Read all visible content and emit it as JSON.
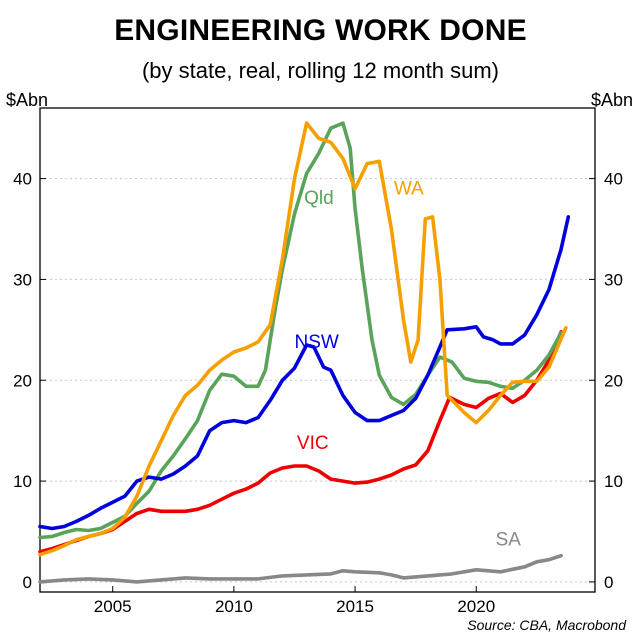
{
  "chart_data": {
    "type": "line",
    "title": "ENGINEERING WORK DONE",
    "subtitle": "(by state, real, rolling 12 month sum)",
    "ylabel_left": "$Abn",
    "ylabel_right": "$Abn",
    "source": "Source: CBA, Macrobond",
    "xlim": [
      2002.0,
      2024.9
    ],
    "ylim": [
      -1,
      47
    ],
    "x_ticks": [
      2005,
      2010,
      2015,
      2020
    ],
    "y_ticks": [
      0,
      10,
      20,
      30,
      40
    ],
    "grid": "horizontal dotted",
    "series": [
      {
        "name": "NSW",
        "color": "#0000dd",
        "points": [
          [
            2002.0,
            5.5
          ],
          [
            2002.5,
            5.3
          ],
          [
            2003.0,
            5.5
          ],
          [
            2003.5,
            6.0
          ],
          [
            2004.0,
            6.6
          ],
          [
            2004.5,
            7.3
          ],
          [
            2005.0,
            7.9
          ],
          [
            2005.5,
            8.5
          ],
          [
            2006.0,
            10.0
          ],
          [
            2006.5,
            10.4
          ],
          [
            2007.0,
            10.2
          ],
          [
            2007.5,
            10.7
          ],
          [
            2008.0,
            11.5
          ],
          [
            2008.5,
            12.5
          ],
          [
            2009.0,
            15.0
          ],
          [
            2009.5,
            15.8
          ],
          [
            2010.0,
            16.0
          ],
          [
            2010.5,
            15.8
          ],
          [
            2011.0,
            16.3
          ],
          [
            2011.5,
            18.0
          ],
          [
            2012.0,
            20.0
          ],
          [
            2012.5,
            21.2
          ],
          [
            2013.0,
            23.5
          ],
          [
            2013.3,
            23.3
          ],
          [
            2013.7,
            21.3
          ],
          [
            2014.0,
            21.0
          ],
          [
            2014.5,
            18.5
          ],
          [
            2015.0,
            16.8
          ],
          [
            2015.5,
            16.0
          ],
          [
            2016.0,
            16.0
          ],
          [
            2016.5,
            16.5
          ],
          [
            2017.0,
            17.0
          ],
          [
            2017.5,
            18.2
          ],
          [
            2018.0,
            20.5
          ],
          [
            2018.5,
            23.3
          ],
          [
            2018.8,
            25.0
          ],
          [
            2019.5,
            25.1
          ],
          [
            2020.0,
            25.3
          ],
          [
            2020.3,
            24.3
          ],
          [
            2020.7,
            24.0
          ],
          [
            2021.0,
            23.6
          ],
          [
            2021.5,
            23.6
          ],
          [
            2022.0,
            24.5
          ],
          [
            2022.5,
            26.5
          ],
          [
            2023.0,
            29.0
          ],
          [
            2023.5,
            33.0
          ],
          [
            2023.8,
            36.2
          ]
        ]
      },
      {
        "name": "Qld",
        "color": "#5aa35a",
        "points": [
          [
            2002.0,
            4.4
          ],
          [
            2002.5,
            4.5
          ],
          [
            2003.0,
            4.9
          ],
          [
            2003.5,
            5.2
          ],
          [
            2004.0,
            5.1
          ],
          [
            2004.5,
            5.3
          ],
          [
            2005.0,
            5.9
          ],
          [
            2005.5,
            6.5
          ],
          [
            2006.0,
            7.8
          ],
          [
            2006.5,
            9.0
          ],
          [
            2007.0,
            11.0
          ],
          [
            2007.5,
            12.5
          ],
          [
            2008.0,
            14.2
          ],
          [
            2008.5,
            16.0
          ],
          [
            2009.0,
            19.0
          ],
          [
            2009.5,
            20.6
          ],
          [
            2010.0,
            20.4
          ],
          [
            2010.5,
            19.4
          ],
          [
            2011.0,
            19.4
          ],
          [
            2011.3,
            21.0
          ],
          [
            2011.7,
            27.0
          ],
          [
            2012.0,
            31.0
          ],
          [
            2012.5,
            36.5
          ],
          [
            2013.0,
            40.5
          ],
          [
            2013.5,
            42.5
          ],
          [
            2014.0,
            45.0
          ],
          [
            2014.5,
            45.5
          ],
          [
            2014.8,
            43.0
          ],
          [
            2015.0,
            37.0
          ],
          [
            2015.3,
            31.0
          ],
          [
            2015.7,
            24.0
          ],
          [
            2016.0,
            20.5
          ],
          [
            2016.5,
            18.3
          ],
          [
            2017.0,
            17.6
          ],
          [
            2017.5,
            18.6
          ],
          [
            2018.0,
            20.5
          ],
          [
            2018.5,
            22.3
          ],
          [
            2019.0,
            21.8
          ],
          [
            2019.5,
            20.2
          ],
          [
            2020.0,
            19.9
          ],
          [
            2020.5,
            19.8
          ],
          [
            2021.0,
            19.4
          ],
          [
            2021.5,
            19.2
          ],
          [
            2022.0,
            20.0
          ],
          [
            2022.5,
            21.0
          ],
          [
            2023.0,
            22.5
          ],
          [
            2023.5,
            24.7
          ]
        ]
      },
      {
        "name": "WA",
        "color": "#f5a000",
        "points": [
          [
            2002.0,
            2.7
          ],
          [
            2002.5,
            3.1
          ],
          [
            2003.0,
            3.6
          ],
          [
            2003.5,
            4.2
          ],
          [
            2004.0,
            4.5
          ],
          [
            2004.5,
            4.8
          ],
          [
            2005.0,
            5.3
          ],
          [
            2005.5,
            6.4
          ],
          [
            2006.0,
            8.5
          ],
          [
            2006.5,
            11.5
          ],
          [
            2007.0,
            14.0
          ],
          [
            2007.5,
            16.5
          ],
          [
            2008.0,
            18.5
          ],
          [
            2008.5,
            19.5
          ],
          [
            2009.0,
            21.0
          ],
          [
            2009.5,
            22.0
          ],
          [
            2010.0,
            22.8
          ],
          [
            2010.5,
            23.2
          ],
          [
            2011.0,
            23.8
          ],
          [
            2011.5,
            25.5
          ],
          [
            2012.0,
            32.0
          ],
          [
            2012.5,
            40.0
          ],
          [
            2013.0,
            45.5
          ],
          [
            2013.5,
            44.0
          ],
          [
            2014.0,
            43.6
          ],
          [
            2014.5,
            42.0
          ],
          [
            2015.0,
            39.0
          ],
          [
            2015.5,
            41.5
          ],
          [
            2016.0,
            41.7
          ],
          [
            2016.5,
            35.0
          ],
          [
            2017.0,
            26.0
          ],
          [
            2017.3,
            21.8
          ],
          [
            2017.6,
            24.0
          ],
          [
            2017.9,
            36.0
          ],
          [
            2018.2,
            36.2
          ],
          [
            2018.5,
            30.0
          ],
          [
            2018.8,
            18.5
          ],
          [
            2019.5,
            16.8
          ],
          [
            2020.0,
            15.8
          ],
          [
            2020.5,
            17.0
          ],
          [
            2021.0,
            18.5
          ],
          [
            2021.5,
            19.8
          ],
          [
            2022.0,
            19.9
          ],
          [
            2022.5,
            19.9
          ],
          [
            2023.0,
            21.3
          ],
          [
            2023.7,
            25.2
          ]
        ]
      },
      {
        "name": "VIC",
        "color": "#ee0000",
        "points": [
          [
            2002.0,
            3.0
          ],
          [
            2002.5,
            3.3
          ],
          [
            2003.0,
            3.7
          ],
          [
            2003.5,
            4.1
          ],
          [
            2004.0,
            4.5
          ],
          [
            2004.5,
            4.8
          ],
          [
            2005.0,
            5.2
          ],
          [
            2005.5,
            6.0
          ],
          [
            2006.0,
            6.8
          ],
          [
            2006.5,
            7.2
          ],
          [
            2007.0,
            7.0
          ],
          [
            2007.5,
            7.0
          ],
          [
            2008.0,
            7.0
          ],
          [
            2008.5,
            7.2
          ],
          [
            2009.0,
            7.6
          ],
          [
            2009.5,
            8.2
          ],
          [
            2010.0,
            8.8
          ],
          [
            2010.5,
            9.2
          ],
          [
            2011.0,
            9.8
          ],
          [
            2011.5,
            10.8
          ],
          [
            2012.0,
            11.3
          ],
          [
            2012.5,
            11.5
          ],
          [
            2013.0,
            11.5
          ],
          [
            2013.5,
            11.0
          ],
          [
            2014.0,
            10.2
          ],
          [
            2014.5,
            10.0
          ],
          [
            2015.0,
            9.8
          ],
          [
            2015.5,
            9.9
          ],
          [
            2016.0,
            10.2
          ],
          [
            2016.5,
            10.6
          ],
          [
            2017.0,
            11.2
          ],
          [
            2017.5,
            11.6
          ],
          [
            2018.0,
            13.0
          ],
          [
            2018.5,
            16.0
          ],
          [
            2018.9,
            18.3
          ],
          [
            2019.5,
            17.6
          ],
          [
            2020.0,
            17.3
          ],
          [
            2020.5,
            18.2
          ],
          [
            2021.0,
            18.7
          ],
          [
            2021.5,
            17.8
          ],
          [
            2022.0,
            18.5
          ],
          [
            2022.5,
            20.0
          ],
          [
            2023.0,
            22.0
          ],
          [
            2023.5,
            24.8
          ]
        ]
      },
      {
        "name": "SA",
        "color": "#888888",
        "points": [
          [
            2002.0,
            0.0
          ],
          [
            2003.0,
            0.2
          ],
          [
            2004.0,
            0.3
          ],
          [
            2005.0,
            0.2
          ],
          [
            2006.0,
            0.0
          ],
          [
            2007.0,
            0.2
          ],
          [
            2008.0,
            0.4
          ],
          [
            2009.0,
            0.3
          ],
          [
            2010.0,
            0.3
          ],
          [
            2011.0,
            0.3
          ],
          [
            2012.0,
            0.6
          ],
          [
            2013.0,
            0.7
          ],
          [
            2014.0,
            0.8
          ],
          [
            2014.5,
            1.1
          ],
          [
            2015.0,
            1.0
          ],
          [
            2016.0,
            0.9
          ],
          [
            2016.5,
            0.7
          ],
          [
            2017.0,
            0.4
          ],
          [
            2018.0,
            0.6
          ],
          [
            2019.0,
            0.8
          ],
          [
            2020.0,
            1.2
          ],
          [
            2021.0,
            1.0
          ],
          [
            2022.0,
            1.5
          ],
          [
            2022.5,
            2.0
          ],
          [
            2023.0,
            2.2
          ],
          [
            2023.5,
            2.6
          ]
        ]
      }
    ],
    "labels": [
      {
        "text": "Qld",
        "series": "Qld",
        "x": 2012.9,
        "y": 37.5
      },
      {
        "text": "WA",
        "series": "WA",
        "x": 2016.6,
        "y": 38.4
      },
      {
        "text": "NSW",
        "series": "NSW",
        "x": 2012.5,
        "y": 23.2
      },
      {
        "text": "VIC",
        "series": "VIC",
        "x": 2012.6,
        "y": 13.2
      },
      {
        "text": "SA",
        "series": "SA",
        "x": 2020.8,
        "y": 3.6
      }
    ]
  }
}
